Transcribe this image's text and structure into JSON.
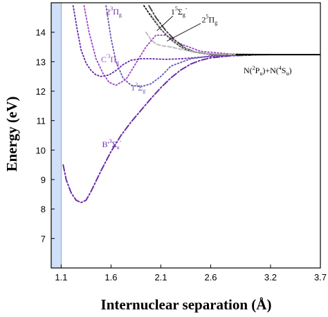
{
  "chart_data": {
    "type": "line",
    "xlabel": "Internuclear separation (Å)",
    "ylabel": "Energy (eV)",
    "xlim": [
      1.0,
      3.7
    ],
    "ylim": [
      6.0,
      15.0
    ],
    "xticks": [
      {
        "value": 1.1,
        "label": "1.1"
      },
      {
        "value": 1.6,
        "label": "1.6"
      },
      {
        "value": 2.1,
        "label": "2.1"
      },
      {
        "value": 2.6,
        "label": "2.6"
      },
      {
        "value": 3.2,
        "label": "3.2"
      },
      {
        "value": 3.7,
        "label": "3.7"
      }
    ],
    "yticks": [
      {
        "value": 7,
        "label": "7"
      },
      {
        "value": 8,
        "label": "8"
      },
      {
        "value": 9,
        "label": "9"
      },
      {
        "value": 10,
        "label": "10"
      },
      {
        "value": 11,
        "label": "11"
      },
      {
        "value": 12,
        "label": "12"
      },
      {
        "value": 13,
        "label": "13"
      },
      {
        "value": 14,
        "label": "14"
      }
    ],
    "shaded_region": {
      "x": [
        1.0,
        1.1
      ],
      "color": "#cfe0f8"
    },
    "asymptote": {
      "y": 13.24,
      "x_start": 2.85,
      "x_end": 3.7,
      "label": "N(²Pᵤ)+N(⁴Sᵤ)"
    },
    "series": [
      {
        "name": "B'³Σu⁻",
        "color": "#6a2da8",
        "dash": "dashdot",
        "x": [
          1.12,
          1.15,
          1.2,
          1.25,
          1.3,
          1.35,
          1.4,
          1.5,
          1.6,
          1.7,
          1.8,
          1.9,
          2.0,
          2.1,
          2.2,
          2.3,
          2.4,
          2.5,
          2.6,
          2.8,
          3.0
        ],
        "y": [
          9.5,
          9.0,
          8.55,
          8.3,
          8.22,
          8.3,
          8.6,
          9.3,
          9.95,
          10.5,
          10.95,
          11.35,
          11.75,
          12.12,
          12.45,
          12.72,
          12.92,
          13.05,
          13.13,
          13.2,
          13.22
        ]
      },
      {
        "name": "C'³Πg",
        "color": "#a04bc8",
        "dash": "dot",
        "x": [
          1.33,
          1.38,
          1.45,
          1.52,
          1.58,
          1.65,
          1.75,
          1.85,
          1.95,
          2.05,
          2.15,
          2.3,
          2.5,
          2.8,
          3.2
        ],
        "y": [
          14.9,
          14.0,
          13.1,
          12.6,
          12.3,
          12.2,
          12.4,
          12.95,
          13.5,
          13.9,
          13.9,
          13.6,
          13.35,
          13.26,
          13.24
        ]
      },
      {
        "name": "2³Πg",
        "color": "#6a2da8",
        "dash": "dot",
        "x": [
          1.22,
          1.26,
          1.3,
          1.35,
          1.4,
          1.45,
          1.5,
          1.58,
          1.65,
          1.72,
          1.8,
          1.9,
          2.0,
          2.15,
          2.3,
          2.5,
          2.7,
          2.9,
          3.2
        ],
        "y": [
          14.9,
          14.1,
          13.4,
          12.95,
          12.7,
          12.55,
          12.5,
          12.55,
          12.7,
          12.9,
          13.05,
          13.1,
          13.1,
          13.08,
          13.1,
          13.15,
          13.2,
          13.22,
          13.24
        ]
      },
      {
        "name": "1³Σg⁻",
        "color": "#6a5fb5",
        "dash": "dot",
        "x": [
          1.55,
          1.6,
          1.65,
          1.72,
          1.8,
          1.9,
          2.0,
          2.1,
          2.2,
          2.4,
          2.6,
          2.8,
          3.2
        ],
        "y": [
          14.9,
          13.8,
          13.0,
          12.45,
          12.2,
          12.15,
          12.25,
          12.5,
          12.85,
          13.1,
          13.2,
          13.23,
          13.24
        ]
      },
      {
        "name": "1⁵Σg⁻",
        "color": "#111111",
        "dash": "dot",
        "x": [
          1.93,
          2.0,
          2.1,
          2.2,
          2.3,
          2.4,
          2.6,
          2.8,
          3.0
        ],
        "y": [
          14.9,
          14.55,
          14.1,
          13.75,
          13.5,
          13.35,
          13.25,
          13.24,
          13.24
        ]
      },
      {
        "name": "1⁵Σg⁻ (dash-dot)",
        "color": "#444444",
        "dash": "dashdot",
        "x": [
          1.98,
          2.05,
          2.15,
          2.25,
          2.35,
          2.45,
          2.6,
          2.8,
          3.0
        ],
        "y": [
          14.9,
          14.5,
          14.05,
          13.7,
          13.45,
          13.32,
          13.25,
          13.24,
          13.24
        ]
      },
      {
        "name": "2⁵Πg",
        "color": "#bbbbbb",
        "dash": "dashed",
        "x": [
          1.95,
          2.0,
          2.05,
          2.1,
          2.2,
          2.3,
          2.4,
          2.55,
          2.7,
          2.9
        ],
        "y": [
          14.0,
          13.75,
          13.6,
          13.55,
          13.5,
          13.42,
          13.35,
          13.28,
          13.25,
          13.24
        ]
      },
      {
        "name": "2⁵Πg (dotted)",
        "color": "#aaaaaa",
        "dash": "dot",
        "x": [
          2.0,
          2.1,
          2.2,
          2.3,
          2.4,
          2.55,
          2.7,
          2.9
        ],
        "y": [
          14.6,
          14.1,
          13.75,
          13.5,
          13.37,
          13.28,
          13.25,
          13.24
        ]
      }
    ],
    "labels": [
      {
        "id": "lbl-2-3Pig",
        "color": "#6a2da8",
        "x": 1.55,
        "y": 14.6,
        "parts": [
          [
            "n",
            "2"
          ],
          [
            "sup",
            "3"
          ],
          [
            "n",
            "Π"
          ],
          [
            "sub",
            "g"
          ]
        ]
      },
      {
        "id": "lbl-1-5Sigg",
        "color": "#111111",
        "x": 2.2,
        "y": 14.6,
        "parts": [
          [
            "n",
            "1"
          ],
          [
            "sup",
            "5"
          ],
          [
            "n",
            "Σ"
          ],
          [
            "sub",
            "g"
          ],
          [
            "sup",
            "-"
          ]
        ]
      },
      {
        "id": "lbl-2-5Pig",
        "color": "#111111",
        "x": 2.51,
        "y": 14.33,
        "parts": [
          [
            "n",
            "2"
          ],
          [
            "sup",
            "5"
          ],
          [
            "n",
            "Π"
          ],
          [
            "sub",
            "g"
          ]
        ]
      },
      {
        "id": "lbl-C3Pig",
        "color": "#a04bc8",
        "x": 1.5,
        "y": 12.98,
        "parts": [
          [
            "n",
            "C"
          ],
          [
            "sup",
            "'3"
          ],
          [
            "n",
            "Π"
          ],
          [
            "sub",
            "g"
          ]
        ]
      },
      {
        "id": "lbl-1-3Sigg",
        "color": "#6a5fb5",
        "x": 1.8,
        "y": 12.02,
        "parts": [
          [
            "n",
            "1"
          ],
          [
            "sup",
            "3"
          ],
          [
            "n",
            "Σ"
          ],
          [
            "sub",
            "g"
          ]
        ]
      },
      {
        "id": "lbl-B3Sigu",
        "color": "#6a2da8",
        "x": 1.51,
        "y": 10.1,
        "parts": [
          [
            "n",
            "B'"
          ],
          [
            "sup",
            "3"
          ],
          [
            "n",
            "Σ"
          ],
          [
            "sub",
            "u"
          ],
          [
            "sup",
            "-"
          ]
        ]
      }
    ],
    "annotation_arrows": [
      {
        "from": [
          2.22,
          14.55
        ],
        "to": [
          2.06,
          14.05
        ]
      },
      {
        "from": [
          2.5,
          14.3
        ],
        "to": [
          2.16,
          13.7
        ]
      }
    ]
  }
}
